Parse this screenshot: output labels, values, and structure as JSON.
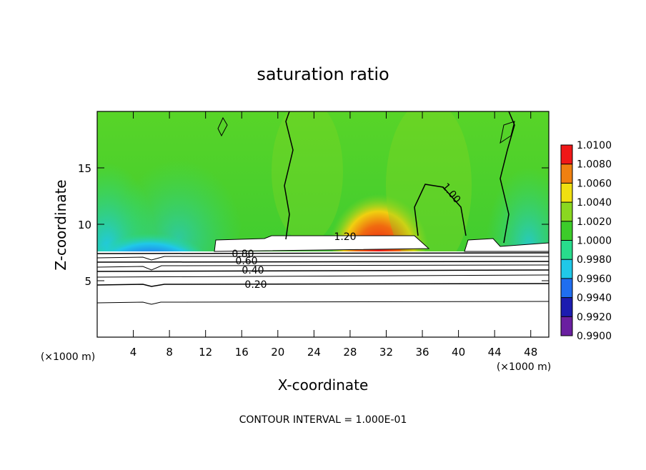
{
  "chart_data": {
    "type": "contour",
    "title": "saturation ratio",
    "x_label": "X-coordinate",
    "y_label": "Z-coordinate",
    "unit_label": "(×1000 m)",
    "note": "CONTOUR INTERVAL = 1.000E-01",
    "xlim": [
      0,
      50
    ],
    "xticks": [
      4,
      8,
      12,
      16,
      20,
      24,
      28,
      32,
      36,
      40,
      44,
      48
    ],
    "ylim": [
      0,
      20
    ],
    "yticks": [
      5,
      10,
      15
    ],
    "contour_levels": [
      {
        "value": 0.2,
        "label": "0.20"
      },
      {
        "value": 0.4,
        "label": "0.40"
      },
      {
        "value": 0.6,
        "label": "0.60"
      },
      {
        "value": 0.8,
        "label": "0.80"
      },
      {
        "value": 1.2,
        "label": "1.20"
      },
      {
        "value": 1,
        "label": "1.00"
      }
    ],
    "colorbar": {
      "ticks": [
        {
          "value": 0.99,
          "label": "0.9900"
        },
        {
          "value": 0.992,
          "label": "0.9920"
        },
        {
          "value": 0.994,
          "label": "0.9940"
        },
        {
          "value": 0.996,
          "label": "0.9960"
        },
        {
          "value": 0.998,
          "label": "0.9980"
        },
        {
          "value": 1,
          "label": "1.0000"
        },
        {
          "value": 1.002,
          "label": "1.0020"
        },
        {
          "value": 1.004,
          "label": "1.0040"
        },
        {
          "value": 1.006,
          "label": "1.0060"
        },
        {
          "value": 1.008,
          "label": "1.0080"
        },
        {
          "value": 1.01,
          "label": "1.0100"
        }
      ],
      "colors": [
        "#6a1fa0",
        "#1c1cb0",
        "#1f6ef0",
        "#20c8e8",
        "#28dc8c",
        "#3ccc2a",
        "#8ad820",
        "#f0e010",
        "#f08010",
        "#f01818"
      ]
    }
  }
}
